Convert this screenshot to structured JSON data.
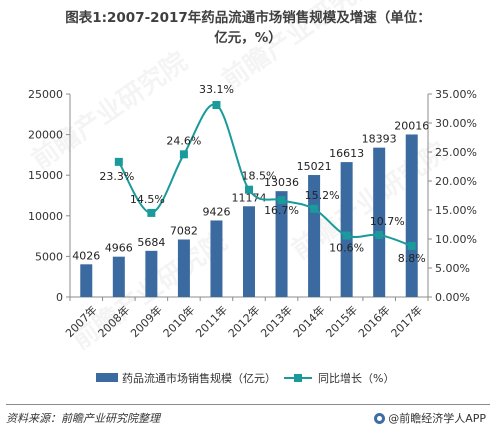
{
  "title": {
    "line1": "图表1:2007-2017年药品流通市场销售规模及增速（单位：",
    "line2": "亿元，%）"
  },
  "chart_data": {
    "type": "bar+line",
    "categories": [
      "2007年",
      "2008年",
      "2009年",
      "2010年",
      "2011年",
      "2012年",
      "2013年",
      "2014年",
      "2015年",
      "2016年",
      "2017年"
    ],
    "series": [
      {
        "name": "药品流通市场销售规模（亿元）",
        "type": "bar",
        "axis": "left",
        "values": [
          4026,
          4966,
          5684,
          7082,
          9426,
          11174,
          13036,
          15021,
          16613,
          18393,
          20016
        ],
        "labels": [
          "4026",
          "4966",
          "5684",
          "7082",
          "9426",
          "11174",
          "13036",
          "15021",
          "16613",
          "18393",
          "20016"
        ],
        "color": "#3b6aa0"
      },
      {
        "name": "同比增长（%）",
        "type": "line",
        "axis": "right",
        "values": [
          null,
          23.3,
          14.5,
          24.6,
          33.1,
          18.5,
          16.7,
          15.2,
          10.6,
          10.7,
          8.8
        ],
        "labels": [
          "",
          "23.3%",
          "14.5%",
          "24.6%",
          "33.1%",
          "18.5%",
          "16.7%",
          "15.2%",
          "10.6%",
          "10.7%",
          "8.8%"
        ],
        "color": "#1a9a9a",
        "smooth": true,
        "marker": "square"
      }
    ],
    "y_left": {
      "ylim": [
        0,
        25000
      ],
      "ticks": [
        "0",
        "5000",
        "10000",
        "15000",
        "20000",
        "25000"
      ]
    },
    "y_right": {
      "ylim": [
        0,
        35
      ],
      "ticks": [
        "0.00%",
        "5.00%",
        "10.00%",
        "15.00%",
        "20.00%",
        "25.00%",
        "30.00%",
        "35.00%"
      ]
    },
    "grid": false,
    "legend": "bottom"
  },
  "footer": {
    "source": "资料来源：前瞻产业研究院整理",
    "brand": "@前瞻经济学人APP"
  },
  "watermark": "前瞻产业研究院"
}
